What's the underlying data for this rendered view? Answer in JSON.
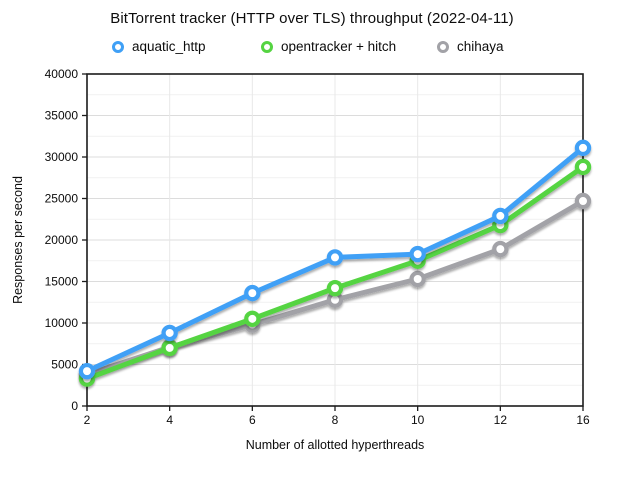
{
  "chart_data": {
    "type": "line",
    "title": "BitTorrent tracker (HTTP over TLS) throughput (2022-04-11)",
    "xlabel": "Number of allotted hyperthreads",
    "ylabel": "Responses per second",
    "categories": [
      "2",
      "4",
      "6",
      "8",
      "10",
      "12",
      "16"
    ],
    "series": [
      {
        "name": "aquatic_http",
        "color": "#3fa0f6",
        "values": [
          4200,
          8800,
          13600,
          17900,
          18300,
          22900,
          31100
        ]
      },
      {
        "name": "opentracker + hitch",
        "color": "#55d442",
        "values": [
          3300,
          7000,
          10500,
          14200,
          17500,
          21800,
          28800
        ]
      },
      {
        "name": "chihaya",
        "color": "#a2a2a7",
        "values": [
          3800,
          7100,
          9800,
          12800,
          15300,
          18900,
          24700
        ]
      }
    ],
    "ylim": [
      0,
      40000
    ],
    "y_major_step": 5000,
    "y_minor_step": 2500,
    "y_tick_labels": [
      "0",
      "5000",
      "10000",
      "15000",
      "20000",
      "25000",
      "30000",
      "35000",
      "40000"
    ],
    "grid": true,
    "legend_position": "top",
    "marker": "open-circle"
  },
  "colors": {
    "axis_line": "#1c1c1c",
    "major_gridline": "#dcdcdc",
    "minor_gridline": "#f1f1f1",
    "vertical_gridline": "#e8e8e8",
    "background": "#ffffff",
    "text": "#0c0c0c"
  }
}
